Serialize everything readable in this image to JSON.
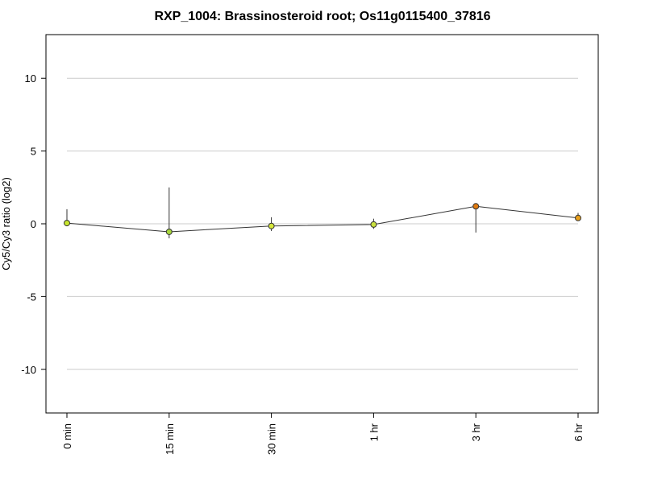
{
  "chart_data": {
    "type": "line",
    "title": "RXP_1004: Brassinosteroid root; Os11g0115400_37816",
    "xlabel": "",
    "ylabel": "Cy5/Cy3 ratio (log2)",
    "categories": [
      "0 min",
      "15 min",
      "30 min",
      "1 hr",
      "3 hr",
      "6 hr"
    ],
    "values": [
      0.05,
      -0.55,
      -0.15,
      -0.05,
      1.2,
      0.4
    ],
    "error_low": [
      0.0,
      -1.0,
      -0.5,
      -0.35,
      -0.6,
      0.3
    ],
    "error_high": [
      1.0,
      2.5,
      0.45,
      0.35,
      1.35,
      0.75
    ],
    "point_colors": [
      "#c8e62e",
      "#a8d83c",
      "#d6e83a",
      "#c9e03e",
      "#e07a10",
      "#e8a01e"
    ],
    "ylim": [
      -13,
      13
    ],
    "yticks": [
      -10,
      -5,
      0,
      5,
      10
    ],
    "grid": true
  }
}
